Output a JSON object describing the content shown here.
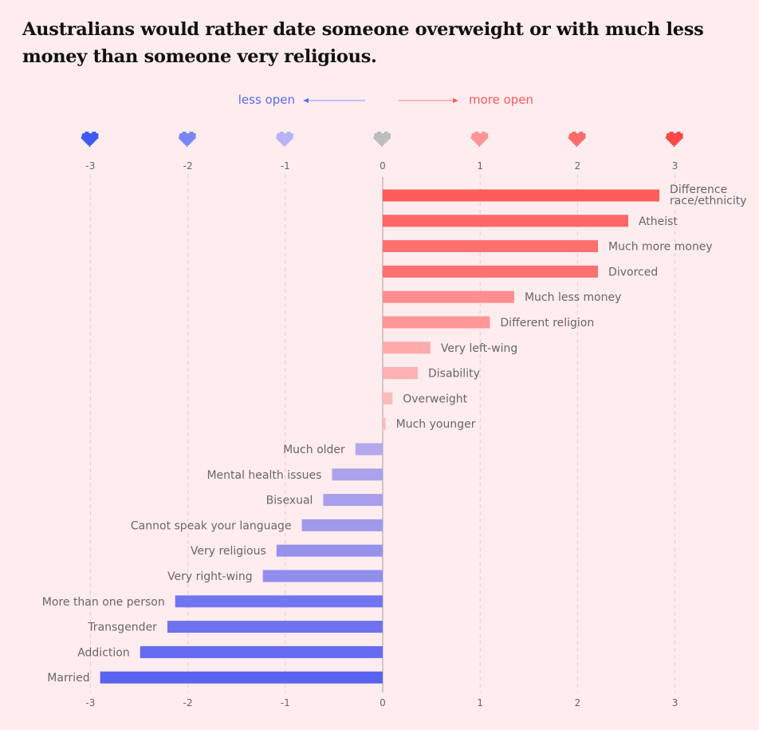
{
  "chart_data": {
    "type": "bar",
    "orientation": "horizontal",
    "title": "Australians would rather date someone overweight or with much less money than someone very religious.",
    "legend": {
      "left": "less open",
      "right": "more open"
    },
    "xlim": [
      -3,
      3
    ],
    "xticks": [
      "-3",
      "-2",
      "-1",
      "0",
      "1",
      "2",
      "3"
    ],
    "grid": true,
    "categories": [
      "Difference race/ethnicity",
      "Atheist",
      "Much more money",
      "Divorced",
      "Much less money",
      "Different religion",
      "Very left-wing",
      "Disability",
      "Overweight",
      "Much younger",
      "Much older",
      "Mental health issues",
      "Bisexual",
      "Cannot speak your language",
      "Very religious",
      "Very right-wing",
      "More than one person",
      "Transgender",
      "Addiction",
      "Married"
    ],
    "values": [
      2.84,
      2.52,
      2.21,
      2.21,
      1.35,
      1.1,
      0.49,
      0.36,
      0.1,
      0.03,
      -0.28,
      -0.52,
      -0.61,
      -0.83,
      -1.09,
      -1.23,
      -2.13,
      -2.21,
      -2.49,
      -2.9
    ]
  },
  "colors": {
    "less": "#5a62f0",
    "more": "#ff5c5c",
    "neutral": "#bdbdbd",
    "heart": [
      "#3d5af1",
      "#7b86f5",
      "#b8b2f5",
      "#bdbdbd",
      "#ff9494",
      "#ff6b6b",
      "#ff4747"
    ]
  }
}
